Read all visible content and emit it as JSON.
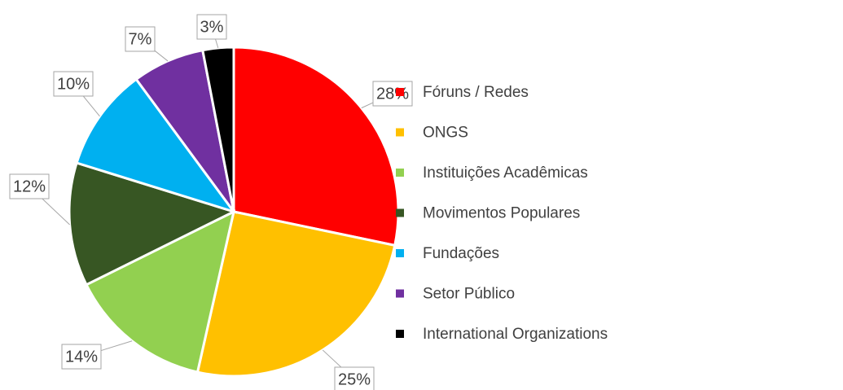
{
  "chart_data": {
    "type": "pie",
    "categories": [
      "Fóruns / Redes",
      "ONGS",
      "Instituições Acadêmicas",
      "Movimentos Populares",
      "Fundações",
      "Setor Público",
      "International Organizations"
    ],
    "values": [
      28,
      25,
      14,
      12,
      10,
      7,
      3
    ],
    "value_labels": [
      "28%",
      "25%",
      "14%",
      "12%",
      "10%",
      "7%",
      "3%"
    ],
    "colors": [
      "#ff0000",
      "#ffc000",
      "#92d050",
      "#375623",
      "#00b0f0",
      "#7030a0",
      "#000000"
    ],
    "legend": "right"
  }
}
